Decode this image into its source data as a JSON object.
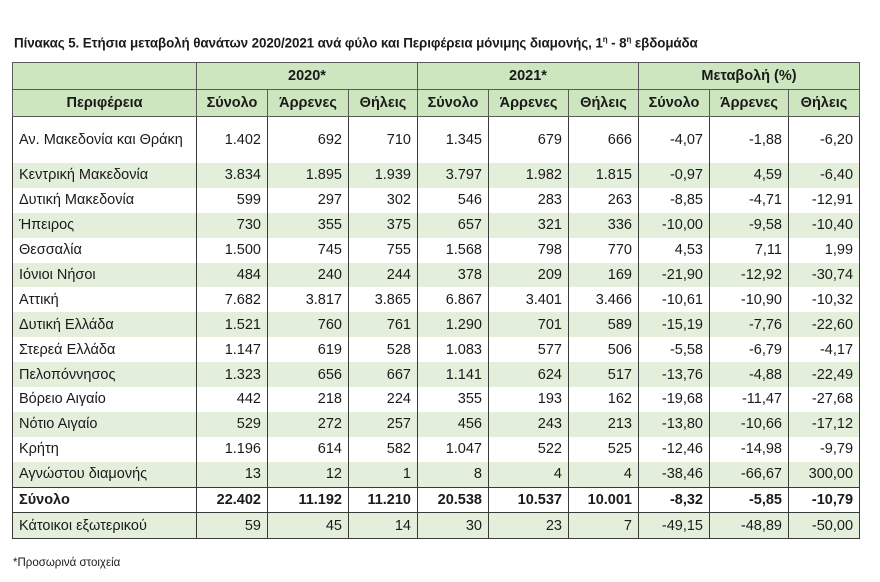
{
  "title": {
    "text": "Πίνακας 5. Ετήσια μεταβολή θανάτων 2020/2021 ανά φύλο και Περιφέρεια μόνιμης διαμονής, 1",
    "sup1": "η",
    "mid": " - 8",
    "sup2": "η",
    "end": " εβδομάδα"
  },
  "header": {
    "groups": [
      "2020*",
      "2021*",
      "Μεταβολή (%)"
    ],
    "region": "Περιφέρεια",
    "sub": [
      "Σύνολο",
      "Άρρενες",
      "Θήλεις",
      "Σύνολο",
      "Άρρενες",
      "Θήλεις",
      "Σύνολο",
      "Άρρενες",
      "Θήλεις"
    ]
  },
  "rows": [
    {
      "name": "Αν. Μακεδονία και Θράκη",
      "v": [
        "1.402",
        "692",
        "710",
        "1.345",
        "679",
        "666",
        "-4,07",
        "-1,88",
        "-6,20"
      ]
    },
    {
      "name": "Κεντρική Μακεδονία",
      "v": [
        "3.834",
        "1.895",
        "1.939",
        "3.797",
        "1.982",
        "1.815",
        "-0,97",
        "4,59",
        "-6,40"
      ]
    },
    {
      "name": "Δυτική Μακεδονία",
      "v": [
        "599",
        "297",
        "302",
        "546",
        "283",
        "263",
        "-8,85",
        "-4,71",
        "-12,91"
      ]
    },
    {
      "name": "Ήπειρος",
      "v": [
        "730",
        "355",
        "375",
        "657",
        "321",
        "336",
        "-10,00",
        "-9,58",
        "-10,40"
      ]
    },
    {
      "name": "Θεσσαλία",
      "v": [
        "1.500",
        "745",
        "755",
        "1.568",
        "798",
        "770",
        "4,53",
        "7,11",
        "1,99"
      ]
    },
    {
      "name": "Ιόνιοι Νήσοι",
      "v": [
        "484",
        "240",
        "244",
        "378",
        "209",
        "169",
        "-21,90",
        "-12,92",
        "-30,74"
      ]
    },
    {
      "name": "Αττική",
      "v": [
        "7.682",
        "3.817",
        "3.865",
        "6.867",
        "3.401",
        "3.466",
        "-10,61",
        "-10,90",
        "-10,32"
      ]
    },
    {
      "name": "Δυτική Ελλάδα",
      "v": [
        "1.521",
        "760",
        "761",
        "1.290",
        "701",
        "589",
        "-15,19",
        "-7,76",
        "-22,60"
      ]
    },
    {
      "name": "Στερεά Ελλάδα",
      "v": [
        "1.147",
        "619",
        "528",
        "1.083",
        "577",
        "506",
        "-5,58",
        "-6,79",
        "-4,17"
      ]
    },
    {
      "name": "Πελοπόννησος",
      "v": [
        "1.323",
        "656",
        "667",
        "1.141",
        "624",
        "517",
        "-13,76",
        "-4,88",
        "-22,49"
      ]
    },
    {
      "name": "Βόρειο Αιγαίο",
      "v": [
        "442",
        "218",
        "224",
        "355",
        "193",
        "162",
        "-19,68",
        "-11,47",
        "-27,68"
      ]
    },
    {
      "name": "Νότιο Αιγαίο",
      "v": [
        "529",
        "272",
        "257",
        "456",
        "243",
        "213",
        "-13,80",
        "-10,66",
        "-17,12"
      ]
    },
    {
      "name": "Κρήτη",
      "v": [
        "1.196",
        "614",
        "582",
        "1.047",
        "522",
        "525",
        "-12,46",
        "-14,98",
        "-9,79"
      ]
    },
    {
      "name": "Αγνώστου διαμονής",
      "v": [
        "13",
        "12",
        "1",
        "8",
        "4",
        "4",
        "-38,46",
        "-66,67",
        "300,00"
      ]
    },
    {
      "name": "Σύνολο",
      "v": [
        "22.402",
        "11.192",
        "11.210",
        "20.538",
        "10.537",
        "10.001",
        "-8,32",
        "-5,85",
        "-10,79"
      ]
    },
    {
      "name": "Κάτοικοι εξωτερικού",
      "v": [
        "59",
        "45",
        "14",
        "30",
        "23",
        "7",
        "-49,15",
        "-48,89",
        "-50,00"
      ]
    }
  ],
  "note": "*Προσωρινά στοιχεία",
  "colors": {
    "header_bg": "#cde6bf",
    "stripe_bg": "#e3efdb",
    "border": "#3a3a3a"
  }
}
